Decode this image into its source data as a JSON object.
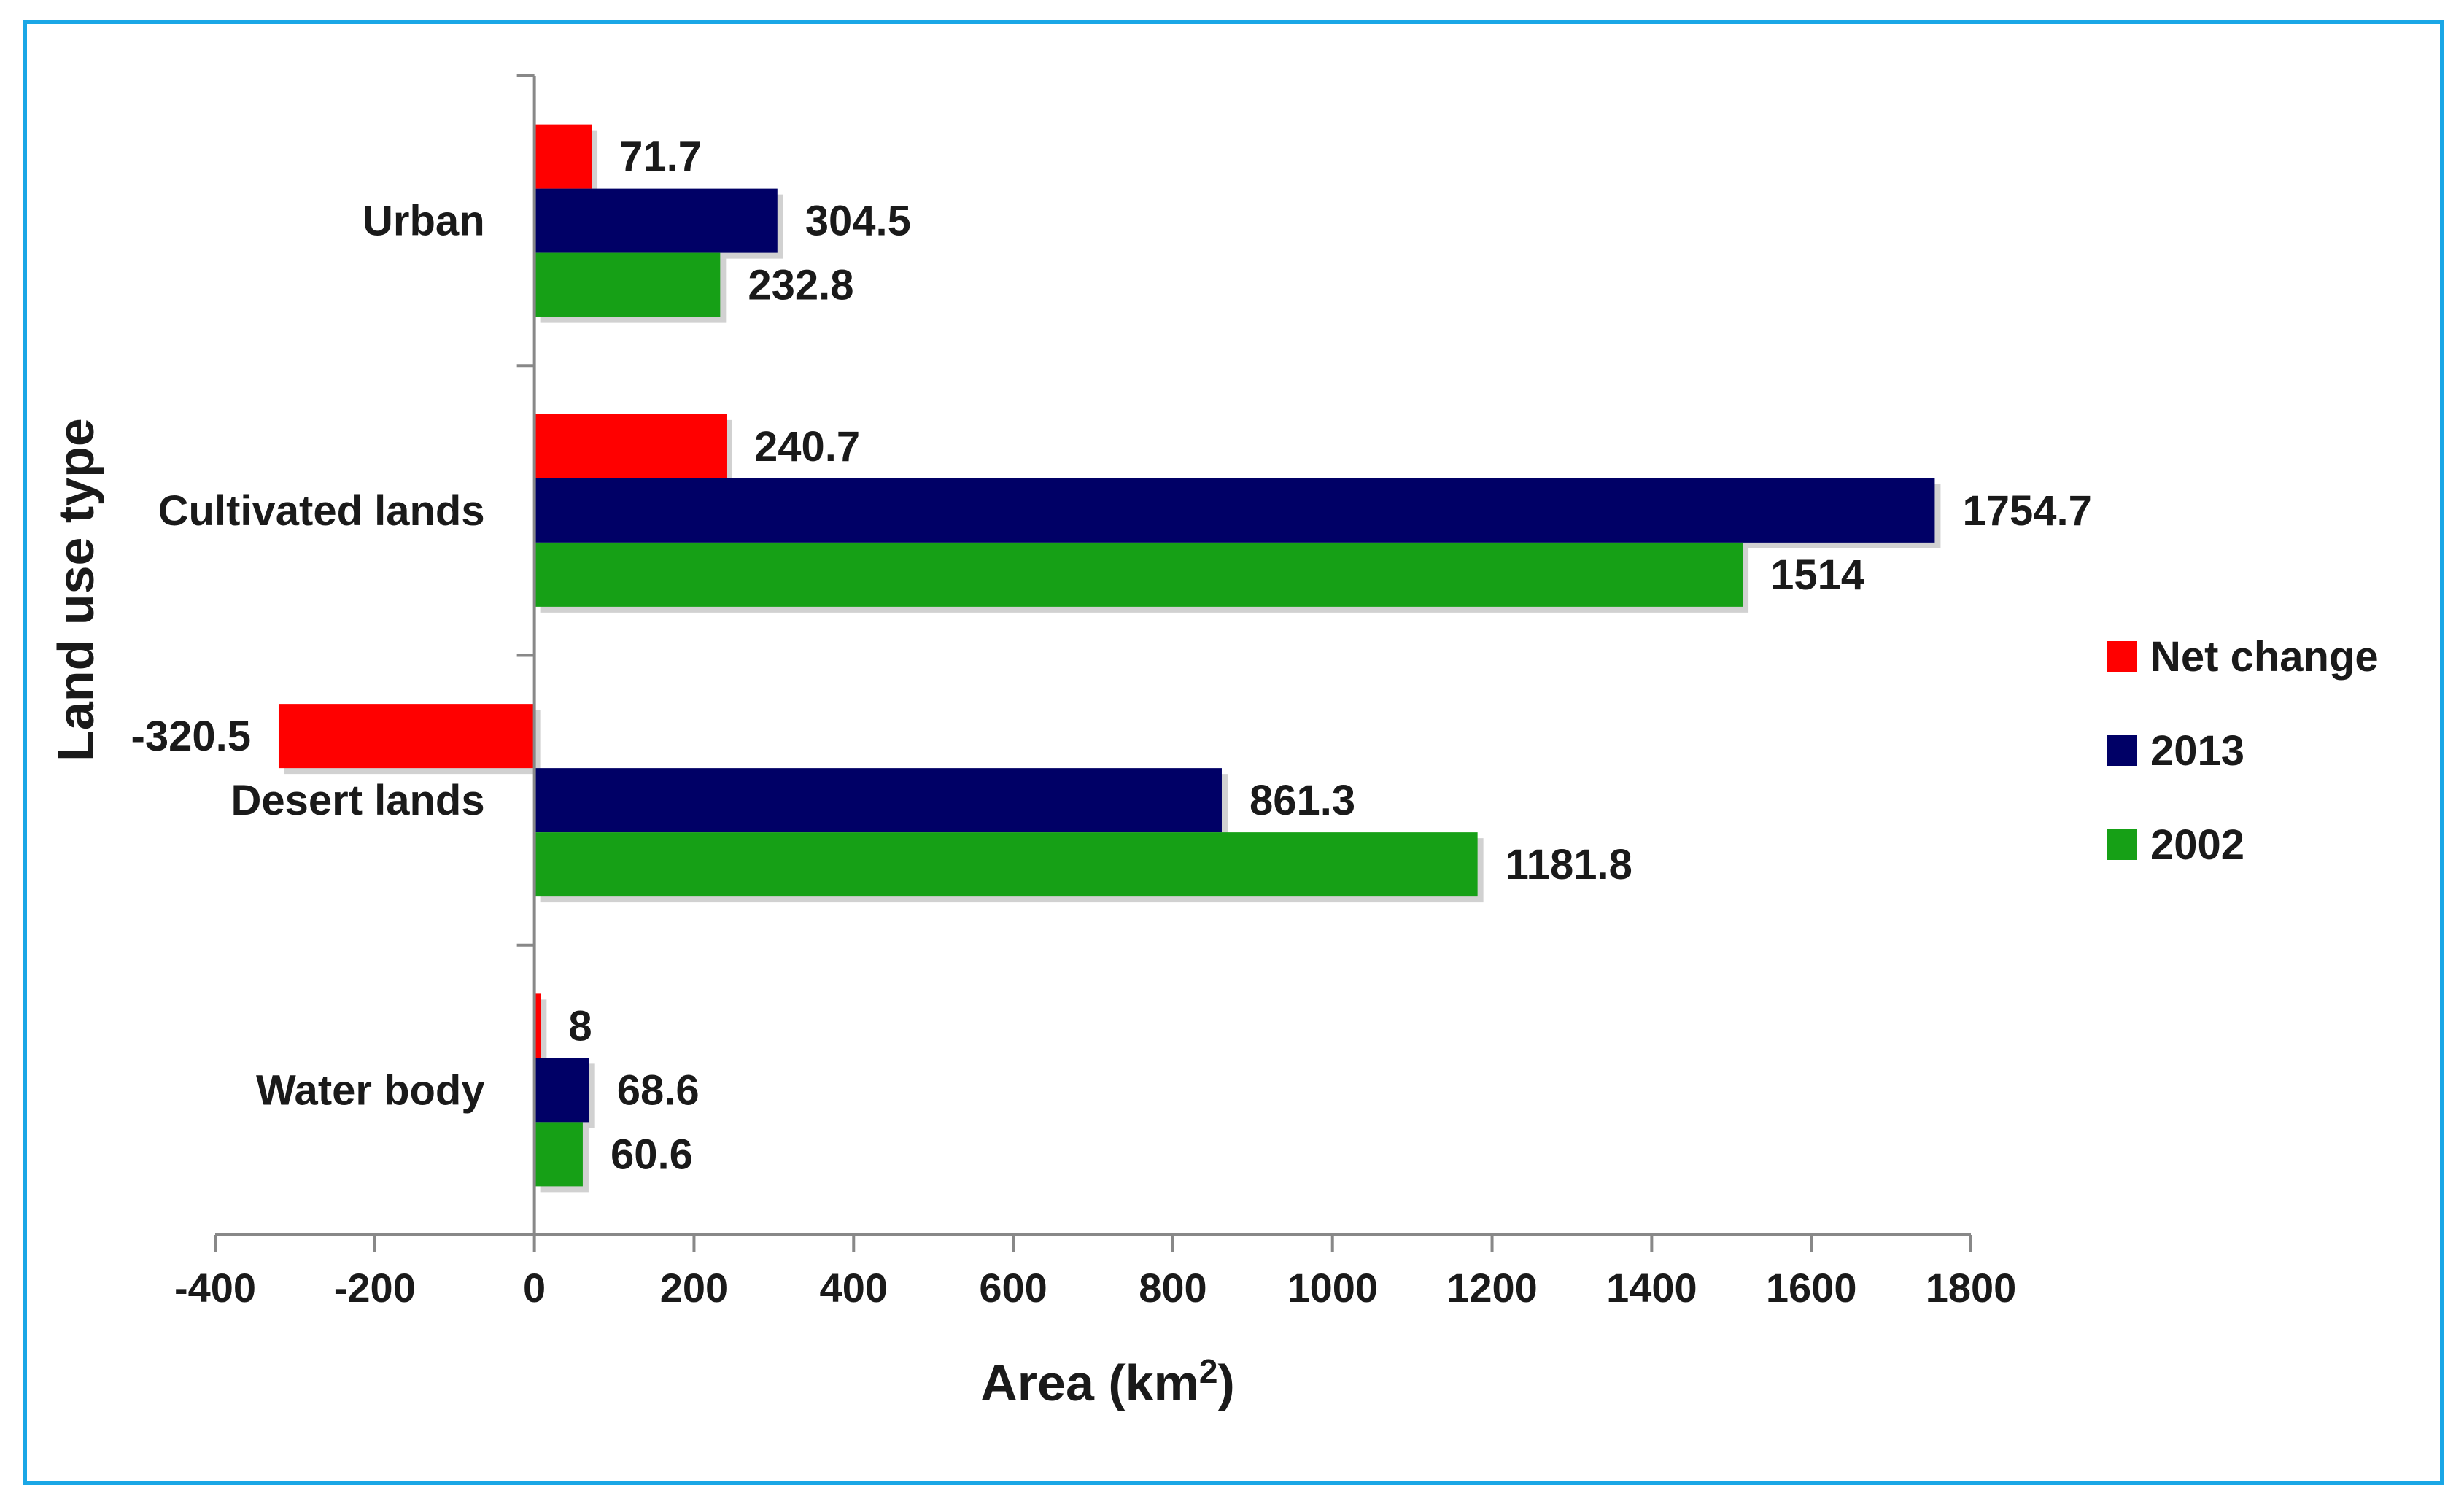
{
  "chart_data": {
    "type": "bar",
    "orientation": "horizontal",
    "categories": [
      "Urban",
      "Cultivated lands",
      "Desert lands",
      "Water body"
    ],
    "series": [
      {
        "name": "Net change",
        "color": "#ff0000",
        "values": [
          71.7,
          240.7,
          -320.5,
          8
        ],
        "labels": [
          "71.7",
          "240.7",
          "-320.5",
          "8"
        ]
      },
      {
        "name": "2013",
        "color": "#000066",
        "values": [
          304.5,
          1754.7,
          861.3,
          68.6
        ],
        "labels": [
          "304.5",
          "1754.7",
          "861.3",
          "68.6"
        ]
      },
      {
        "name": "2002",
        "color": "#16a016",
        "values": [
          232.8,
          1514,
          1181.8,
          60.6
        ],
        "labels": [
          "232.8",
          "1514",
          "1181.8",
          "60.6"
        ]
      }
    ],
    "xlabel_main": "Area (km",
    "xlabel_sup": "2",
    "xlabel_end": ")",
    "ylabel": "Land use type",
    "xlim": [
      -400,
      1800
    ],
    "xticks": [
      -400,
      -200,
      0,
      200,
      400,
      600,
      800,
      1000,
      1200,
      1400,
      1600,
      1800
    ],
    "xtick_labels": [
      "-400",
      "-200",
      "0",
      "200",
      "400",
      "600",
      "800",
      "1000",
      "1200",
      "1400",
      "1600",
      "1800"
    ],
    "legend_position": "right",
    "legend_order": [
      "Net change",
      "2013",
      "2002"
    ],
    "grid": false,
    "frame_color": "#1aa7e6"
  }
}
